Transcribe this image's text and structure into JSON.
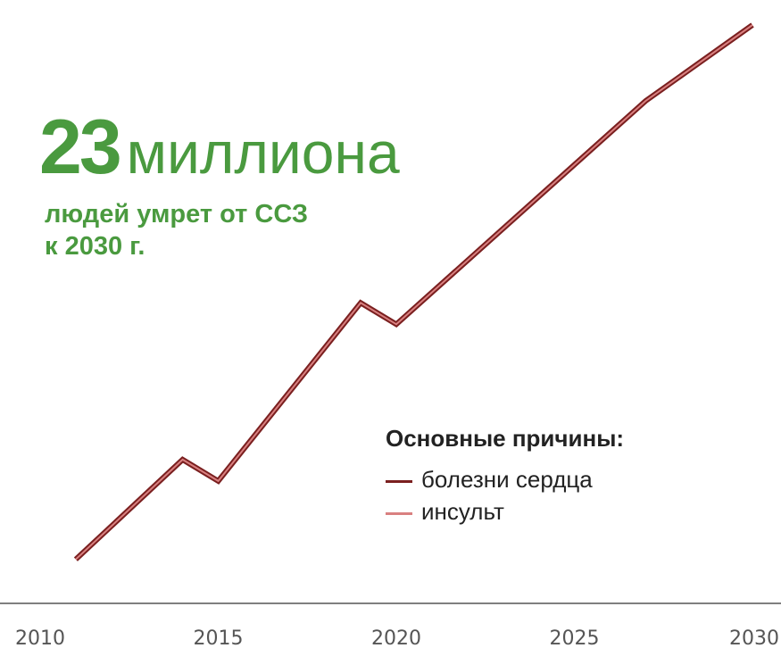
{
  "headline": {
    "number": "23",
    "word": "миллиона",
    "line1": "людей умрет от ССЗ",
    "line2": "к 2030 г."
  },
  "legend": {
    "title": "Основные причины:",
    "items": [
      {
        "label": "болезни сердца",
        "color": "#7a1f1f"
      },
      {
        "label": "инсульт",
        "color": "#d98080"
      }
    ]
  },
  "chart_data": {
    "type": "line",
    "x": [
      2011,
      2014,
      2015,
      2019,
      2020,
      2027,
      2030
    ],
    "series": [
      {
        "values": [
          0.5,
          4.7,
          3.8,
          11.3,
          10.4,
          19.8,
          23
        ]
      }
    ],
    "xticks": [
      "2010",
      "2015",
      "2020",
      "2025",
      "2030"
    ],
    "xlim": [
      2010,
      2030
    ],
    "ylim": [
      0,
      23
    ],
    "line_colors": [
      "#7a1f1f",
      "#d98080"
    ],
    "grid": false
  }
}
